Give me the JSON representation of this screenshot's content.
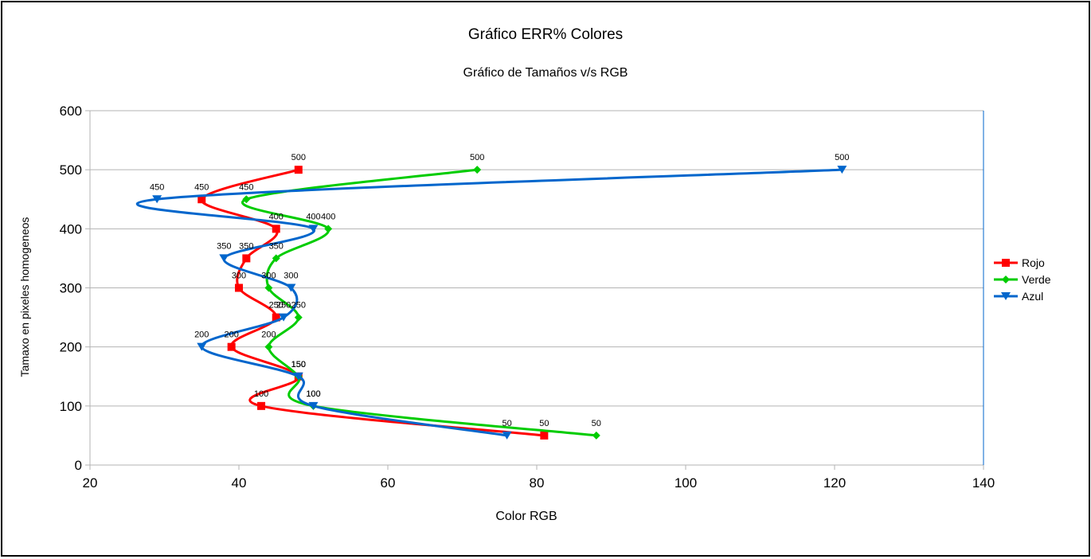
{
  "chart_data": {
    "type": "scatter",
    "title": "Gráfico ERR% Colores",
    "subtitle": "Gráfico de Tamaños v/s RGB",
    "xlabel": "Color RGB",
    "ylabel": "Tamaxo en pixeles homogeneos",
    "xlim": [
      20,
      140
    ],
    "ylim": [
      0,
      600
    ],
    "xticks": [
      20,
      40,
      60,
      80,
      100,
      120,
      140
    ],
    "yticks": [
      0,
      100,
      200,
      300,
      400,
      500,
      600
    ],
    "grid": "horizontal",
    "legend_position": "right",
    "smoothed_lines": true,
    "series": [
      {
        "name": "Rojo",
        "color": "#ff0000",
        "marker": "square",
        "points": [
          {
            "x": 81,
            "y": 50
          },
          {
            "x": 43,
            "y": 100
          },
          {
            "x": 48,
            "y": 150
          },
          {
            "x": 39,
            "y": 200
          },
          {
            "x": 45,
            "y": 250
          },
          {
            "x": 40,
            "y": 300
          },
          {
            "x": 41,
            "y": 350
          },
          {
            "x": 45,
            "y": 400
          },
          {
            "x": 35,
            "y": 450
          },
          {
            "x": 48,
            "y": 500
          }
        ]
      },
      {
        "name": "Verde",
        "color": "#00cc00",
        "marker": "diamond",
        "points": [
          {
            "x": 88,
            "y": 50
          },
          {
            "x": 50,
            "y": 100
          },
          {
            "x": 48,
            "y": 150
          },
          {
            "x": 44,
            "y": 200
          },
          {
            "x": 48,
            "y": 250
          },
          {
            "x": 44,
            "y": 300
          },
          {
            "x": 45,
            "y": 350
          },
          {
            "x": 52,
            "y": 400
          },
          {
            "x": 41,
            "y": 450
          },
          {
            "x": 72,
            "y": 500
          }
        ]
      },
      {
        "name": "Azul",
        "color": "#0066cc",
        "marker": "triangle-down",
        "points": [
          {
            "x": 76,
            "y": 50
          },
          {
            "x": 50,
            "y": 100
          },
          {
            "x": 48,
            "y": 150
          },
          {
            "x": 35,
            "y": 200
          },
          {
            "x": 46,
            "y": 250
          },
          {
            "x": 47,
            "y": 300
          },
          {
            "x": 38,
            "y": 350
          },
          {
            "x": 50,
            "y": 400
          },
          {
            "x": 29,
            "y": 450
          },
          {
            "x": 121,
            "y": 500
          }
        ]
      }
    ]
  }
}
